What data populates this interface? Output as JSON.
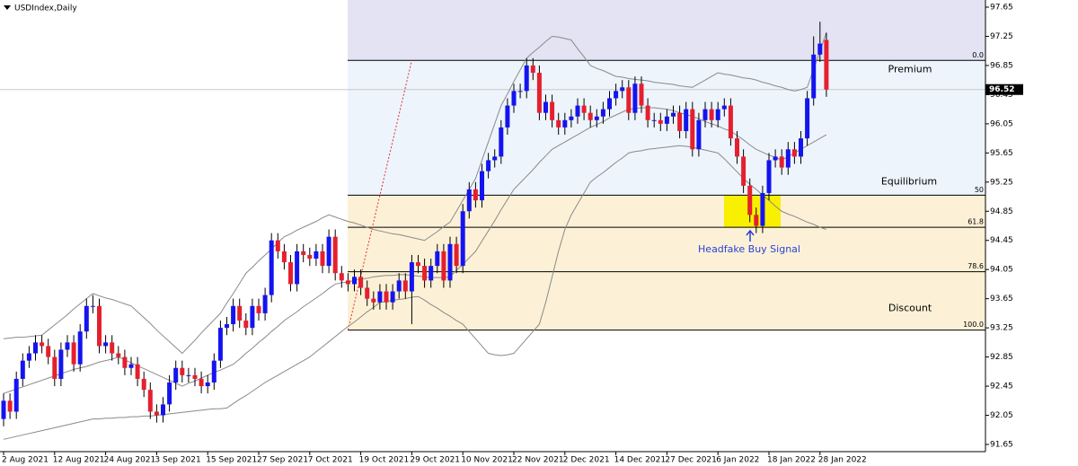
{
  "chart_data": {
    "type": "candlestick",
    "title": "USDIndex,Daily",
    "categories": [
      "2 Aug 2021",
      null,
      null,
      null,
      null,
      null,
      null,
      null,
      "12 Aug 2021",
      null,
      null,
      null,
      null,
      null,
      null,
      null,
      "24 Aug 2021",
      null,
      null,
      null,
      null,
      null,
      null,
      null,
      "3 Sep 2021",
      null,
      null,
      null,
      null,
      null,
      null,
      null,
      "15 Sep 2021",
      null,
      null,
      null,
      null,
      null,
      null,
      null,
      "27 Sep 2021",
      null,
      null,
      null,
      null,
      null,
      null,
      null,
      "7 Oct 2021",
      null,
      null,
      null,
      null,
      null,
      null,
      null,
      "19 Oct 2021",
      null,
      null,
      null,
      null,
      null,
      null,
      null,
      "29 Oct 2021",
      null,
      null,
      null,
      null,
      null,
      null,
      null,
      "10 Nov 2021",
      null,
      null,
      null,
      null,
      null,
      null,
      null,
      "22 Nov 2021",
      null,
      null,
      null,
      null,
      null,
      null,
      null,
      "2 Dec 2021",
      null,
      null,
      null,
      null,
      null,
      null,
      null,
      "14 Dec 2021",
      null,
      null,
      null,
      null,
      null,
      null,
      null,
      "27 Dec 2021",
      null,
      null,
      null,
      null,
      null,
      null,
      null,
      "6 Jan 2022",
      null,
      null,
      null,
      null,
      null,
      null,
      null,
      "18 Jan 2022",
      null,
      null,
      null,
      null,
      null,
      null,
      null,
      "28 Jan 2022",
      null
    ],
    "open": [
      92.0,
      92.25,
      92.1,
      92.55,
      92.8,
      92.9,
      93.05,
      93.0,
      92.85,
      92.55,
      92.95,
      93.05,
      92.75,
      93.2,
      93.55,
      93.55,
      93.0,
      93.05,
      92.9,
      92.85,
      92.7,
      92.75,
      92.55,
      92.4,
      92.1,
      92.05,
      92.2,
      92.5,
      92.7,
      92.6,
      92.6,
      92.55,
      92.45,
      92.5,
      92.8,
      93.25,
      93.3,
      93.55,
      93.35,
      93.25,
      93.55,
      93.45,
      93.7,
      94.45,
      94.3,
      94.15,
      93.85,
      94.3,
      94.25,
      94.2,
      94.3,
      94.1,
      94.5,
      94.0,
      93.9,
      93.85,
      93.95,
      93.8,
      93.65,
      93.6,
      93.75,
      93.6,
      93.75,
      93.9,
      93.75,
      94.15,
      94.1,
      93.9,
      94.1,
      94.3,
      93.9,
      94.4,
      94.1,
      94.85,
      95.15,
      95.0,
      95.4,
      95.55,
      95.6,
      96.0,
      96.3,
      96.5,
      96.5,
      96.85,
      96.75,
      96.2,
      96.35,
      96.1,
      96.0,
      96.1,
      96.15,
      96.3,
      96.2,
      96.1,
      96.15,
      96.25,
      96.4,
      96.5,
      96.55,
      96.2,
      96.6,
      96.3,
      96.1,
      96.1,
      96.05,
      96.15,
      96.2,
      95.95,
      96.25,
      95.7,
      96.1,
      96.25,
      96.1,
      96.25,
      96.3,
      95.85,
      95.6,
      95.2,
      94.8,
      94.65,
      95.1,
      95.55,
      95.6,
      95.45,
      95.7,
      95.6,
      95.85,
      96.4,
      97.0,
      97.2
    ],
    "high": [
      92.35,
      92.35,
      92.65,
      92.9,
      93.0,
      93.15,
      93.15,
      93.1,
      92.95,
      93.05,
      93.15,
      93.15,
      93.3,
      93.65,
      93.7,
      93.65,
      93.15,
      93.15,
      93.0,
      92.95,
      92.85,
      92.85,
      92.65,
      92.5,
      92.2,
      92.3,
      92.6,
      92.8,
      92.8,
      92.7,
      92.7,
      92.65,
      92.6,
      92.9,
      93.35,
      93.4,
      93.65,
      93.65,
      93.45,
      93.65,
      93.65,
      93.8,
      94.55,
      94.55,
      94.4,
      94.25,
      94.4,
      94.4,
      94.35,
      94.4,
      94.4,
      94.6,
      94.6,
      94.1,
      94.0,
      94.05,
      94.05,
      93.9,
      93.75,
      93.85,
      93.85,
      93.85,
      94.0,
      94.0,
      94.25,
      94.25,
      94.2,
      94.2,
      94.4,
      94.4,
      94.5,
      94.5,
      94.95,
      95.25,
      95.25,
      95.5,
      95.65,
      95.7,
      96.1,
      96.4,
      96.6,
      96.6,
      96.95,
      96.95,
      96.85,
      96.45,
      96.45,
      96.2,
      96.2,
      96.25,
      96.4,
      96.4,
      96.3,
      96.25,
      96.35,
      96.5,
      96.6,
      96.65,
      96.65,
      96.7,
      96.7,
      96.4,
      96.2,
      96.2,
      96.25,
      96.3,
      96.3,
      96.35,
      96.35,
      96.2,
      96.35,
      96.35,
      96.35,
      96.4,
      96.4,
      95.95,
      95.7,
      95.3,
      94.9,
      95.2,
      95.65,
      95.7,
      95.7,
      95.8,
      95.8,
      95.95,
      96.5,
      97.25,
      97.45,
      97.3
    ],
    "low": [
      91.9,
      92.0,
      92.0,
      92.45,
      92.7,
      92.8,
      92.9,
      92.75,
      92.45,
      92.45,
      92.85,
      92.65,
      92.65,
      93.1,
      93.45,
      92.9,
      92.9,
      92.8,
      92.75,
      92.6,
      92.6,
      92.45,
      92.3,
      92.0,
      91.95,
      91.95,
      92.1,
      92.4,
      92.5,
      92.5,
      92.45,
      92.35,
      92.35,
      92.4,
      92.7,
      93.15,
      93.2,
      93.25,
      93.15,
      93.15,
      93.35,
      93.35,
      93.6,
      94.2,
      94.05,
      93.75,
      93.75,
      94.15,
      94.1,
      94.1,
      94.0,
      94.0,
      93.9,
      93.8,
      93.75,
      93.75,
      93.7,
      93.55,
      93.5,
      93.5,
      93.5,
      93.5,
      93.65,
      93.65,
      93.3,
      94.0,
      93.8,
      93.8,
      94.0,
      93.8,
      93.8,
      94.0,
      94.0,
      94.75,
      94.9,
      94.9,
      95.3,
      95.45,
      95.5,
      95.9,
      96.2,
      96.4,
      96.4,
      96.65,
      96.1,
      96.1,
      96.0,
      95.9,
      95.9,
      96.0,
      96.05,
      96.1,
      96.0,
      96.0,
      96.05,
      96.15,
      96.3,
      96.4,
      96.1,
      96.1,
      96.2,
      96.0,
      96.0,
      95.95,
      95.95,
      96.05,
      95.85,
      95.85,
      95.6,
      95.6,
      96.0,
      96.0,
      96.0,
      96.15,
      95.75,
      95.5,
      95.1,
      94.7,
      94.55,
      94.55,
      95.0,
      95.45,
      95.35,
      95.35,
      95.5,
      95.5,
      95.75,
      96.3,
      96.9,
      96.42
    ],
    "close": [
      92.25,
      92.1,
      92.55,
      92.8,
      92.9,
      93.05,
      93.0,
      92.85,
      92.55,
      92.95,
      93.05,
      92.75,
      93.2,
      93.55,
      93.55,
      93.0,
      93.05,
      92.9,
      92.85,
      92.7,
      92.75,
      92.55,
      92.4,
      92.1,
      92.05,
      92.2,
      92.5,
      92.7,
      92.6,
      92.6,
      92.55,
      92.45,
      92.5,
      92.8,
      93.25,
      93.3,
      93.55,
      93.35,
      93.25,
      93.55,
      93.45,
      93.7,
      94.45,
      94.3,
      94.15,
      93.85,
      94.3,
      94.25,
      94.2,
      94.3,
      94.1,
      94.5,
      94.0,
      93.9,
      93.85,
      93.95,
      93.8,
      93.65,
      93.6,
      93.75,
      93.6,
      93.75,
      93.9,
      93.75,
      94.15,
      94.1,
      93.9,
      94.1,
      94.3,
      93.9,
      94.4,
      94.1,
      94.85,
      95.15,
      95.0,
      95.4,
      95.55,
      95.6,
      96.0,
      96.3,
      96.5,
      96.5,
      96.85,
      96.75,
      96.2,
      96.35,
      96.1,
      96.0,
      96.1,
      96.15,
      96.3,
      96.2,
      96.1,
      96.15,
      96.25,
      96.4,
      96.5,
      96.55,
      96.2,
      96.6,
      96.3,
      96.1,
      96.1,
      96.05,
      96.15,
      96.2,
      95.95,
      96.25,
      95.7,
      96.1,
      96.25,
      96.1,
      96.25,
      96.3,
      95.85,
      95.6,
      95.2,
      94.8,
      94.65,
      95.1,
      95.55,
      95.6,
      95.45,
      95.7,
      95.6,
      95.85,
      96.4,
      97.0,
      97.15,
      96.52
    ],
    "up_color": "#1414f0",
    "down_color": "#e5202e",
    "bollinger": {
      "color": "#8a8a8a",
      "upper": [
        93.1,
        93.11,
        93.12,
        93.12,
        93.13,
        93.14,
        93.15,
        93.22,
        93.29,
        93.36,
        93.43,
        93.51,
        93.58,
        93.65,
        93.72,
        93.69,
        93.66,
        93.64,
        93.61,
        93.58,
        93.55,
        93.47,
        93.39,
        93.31,
        93.22,
        93.14,
        93.06,
        92.98,
        92.9,
        92.99,
        93.08,
        93.18,
        93.27,
        93.36,
        93.45,
        93.59,
        93.72,
        93.86,
        94.0,
        94.08,
        94.17,
        94.25,
        94.33,
        94.42,
        94.5,
        94.54,
        94.59,
        94.63,
        94.67,
        94.71,
        94.76,
        94.8,
        94.77,
        94.74,
        94.71,
        94.69,
        94.66,
        94.63,
        94.6,
        94.58,
        94.56,
        94.54,
        94.53,
        94.51,
        94.49,
        94.47,
        94.45,
        94.51,
        94.57,
        94.64,
        94.7,
        94.85,
        95.0,
        95.15,
        95.3,
        95.55,
        95.8,
        96.05,
        96.3,
        96.46,
        96.63,
        96.79,
        96.95,
        97.03,
        97.1,
        97.18,
        97.25,
        97.24,
        97.22,
        97.2,
        97.08,
        96.97,
        96.85,
        96.81,
        96.78,
        96.74,
        96.7,
        96.69,
        96.67,
        96.66,
        96.65,
        96.64,
        96.62,
        96.61,
        96.6,
        96.59,
        96.57,
        96.56,
        96.55,
        96.6,
        96.65,
        96.7,
        96.75,
        96.73,
        96.72,
        96.7,
        96.68,
        96.67,
        96.65,
        96.62,
        96.6,
        96.57,
        96.55,
        96.52,
        96.5,
        96.52,
        96.55,
        96.8,
        97.05,
        97.3
      ],
      "middle": [
        92.35,
        92.38,
        92.41,
        92.44,
        92.47,
        92.5,
        92.53,
        92.56,
        92.59,
        92.62,
        92.65,
        92.68,
        92.7,
        92.72,
        92.75,
        92.78,
        92.8,
        92.82,
        92.85,
        92.81,
        92.77,
        92.73,
        92.69,
        92.65,
        92.61,
        92.57,
        92.53,
        92.49,
        92.45,
        92.49,
        92.52,
        92.56,
        92.6,
        92.64,
        92.67,
        92.71,
        92.75,
        92.82,
        92.9,
        92.97,
        93.05,
        93.12,
        93.2,
        93.27,
        93.35,
        93.41,
        93.47,
        93.54,
        93.6,
        93.66,
        93.72,
        93.79,
        93.85,
        93.87,
        93.88,
        93.9,
        93.92,
        93.93,
        93.95,
        93.96,
        93.97,
        93.97,
        93.98,
        93.98,
        93.97,
        93.96,
        93.95,
        93.94,
        93.94,
        93.94,
        93.95,
        94.04,
        94.12,
        94.21,
        94.3,
        94.44,
        94.58,
        94.72,
        94.87,
        95.01,
        95.15,
        95.24,
        95.33,
        95.42,
        95.52,
        95.61,
        95.7,
        95.75,
        95.8,
        95.85,
        95.9,
        95.95,
        96.0,
        96.04,
        96.08,
        96.13,
        96.17,
        96.21,
        96.25,
        96.26,
        96.27,
        96.27,
        96.27,
        96.26,
        96.25,
        96.23,
        96.2,
        96.18,
        96.15,
        96.12,
        96.08,
        96.05,
        96.02,
        95.98,
        95.95,
        95.89,
        95.83,
        95.76,
        95.7,
        95.66,
        95.62,
        95.59,
        95.55,
        95.6,
        95.65,
        95.7,
        95.75,
        95.8,
        95.85,
        95.9
      ],
      "lower": [
        91.72,
        91.74,
        91.76,
        91.78,
        91.8,
        91.82,
        91.84,
        91.86,
        91.88,
        91.9,
        91.92,
        91.94,
        91.96,
        91.98,
        92.0,
        92.0,
        92.01,
        92.01,
        92.02,
        92.02,
        92.03,
        92.03,
        92.04,
        92.04,
        92.05,
        92.06,
        92.07,
        92.08,
        92.09,
        92.1,
        92.11,
        92.12,
        92.13,
        92.14,
        92.14,
        92.15,
        92.21,
        92.27,
        92.32,
        92.38,
        92.44,
        92.5,
        92.55,
        92.6,
        92.65,
        92.7,
        92.75,
        92.8,
        92.85,
        92.92,
        92.99,
        93.06,
        93.13,
        93.2,
        93.27,
        93.33,
        93.4,
        93.47,
        93.53,
        93.6,
        93.61,
        93.63,
        93.64,
        93.65,
        93.67,
        93.68,
        93.63,
        93.57,
        93.52,
        93.46,
        93.41,
        93.35,
        93.3,
        93.2,
        93.1,
        93.0,
        92.9,
        92.88,
        92.87,
        92.88,
        92.9,
        93.0,
        93.1,
        93.2,
        93.3,
        93.6,
        93.95,
        94.3,
        94.6,
        94.8,
        94.95,
        95.1,
        95.25,
        95.32,
        95.38,
        95.45,
        95.52,
        95.58,
        95.65,
        95.67,
        95.68,
        95.7,
        95.71,
        95.72,
        95.73,
        95.74,
        95.75,
        95.74,
        95.73,
        95.71,
        95.69,
        95.67,
        95.65,
        95.57,
        95.48,
        95.39,
        95.3,
        95.22,
        95.15,
        95.07,
        95.0,
        94.92,
        94.85,
        94.81,
        94.78,
        94.74,
        94.7,
        94.67,
        94.63,
        94.6
      ]
    },
    "ylim": [
      91.65,
      97.65
    ],
    "yticks": [
      91.65,
      92.05,
      92.45,
      92.85,
      93.25,
      93.65,
      94.05,
      94.45,
      94.85,
      95.25,
      95.65,
      96.05,
      96.45,
      96.85,
      97.25,
      97.65
    ],
    "current_price": 96.52,
    "fibonacci": {
      "levels": [
        {
          "label": "0.0",
          "price": 96.92
        },
        {
          "label": "50",
          "price": 95.07
        },
        {
          "label": "61.8",
          "price": 94.63
        },
        {
          "label": "78.6",
          "price": 94.02
        },
        {
          "label": "100.0",
          "price": 93.22
        }
      ],
      "zones": [
        {
          "name": "Premium",
          "color": "#e3e3f3"
        },
        {
          "name": "Equilibrium",
          "color": "#edf4fc"
        },
        {
          "name": "Discount",
          "color": "#fcf1d6"
        }
      ],
      "line_color": "#e03030"
    },
    "annotation": "Headfake Buy Signal",
    "annotation_color": "#2a3fd8",
    "highlight_color": "#f8f000"
  }
}
